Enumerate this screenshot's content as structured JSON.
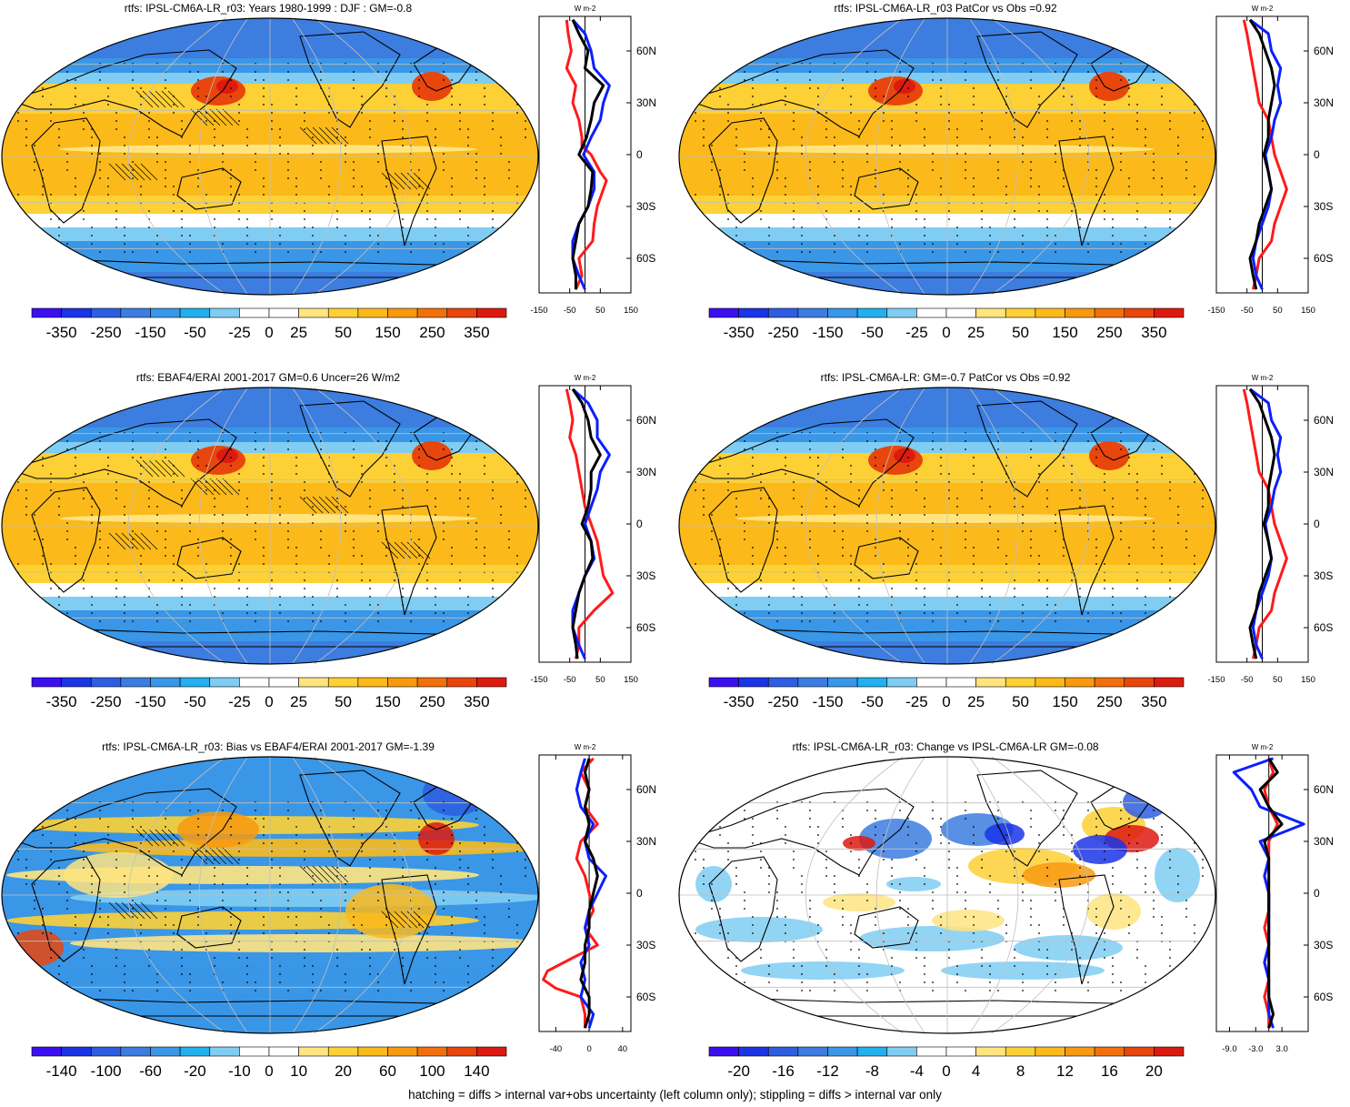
{
  "footer": "hatching = diffs > internal var+obs uncertainty (left column only); stippling = diffs > internal var only",
  "colors": {
    "red": "#ff1a1a",
    "blue": "#0a1fff",
    "black": "#000000",
    "land_line": "#000000",
    "grid": "#bfbfbf"
  },
  "panels": [
    {
      "title": "rtfs: IPSL-CM6A-LR_r03: Years 1980-1999 : DJF : GM=-0.8",
      "style": "full",
      "hatch": true,
      "stipple": true,
      "colorbar_labels": [
        "-350",
        "-250",
        "-150",
        "-50",
        "-25",
        "0",
        "25",
        "50",
        "150",
        "250",
        "350"
      ],
      "profile": {
        "unit": "W m-2",
        "xticks": [
          "-150",
          "-50",
          "50",
          "150"
        ],
        "xrange": [
          -150,
          150
        ],
        "lat_labels": [
          "60N",
          "30N",
          "0",
          "30S",
          "60S"
        ],
        "lines": [
          {
            "name": "red",
            "lat": [
              78,
              70,
              60,
              50,
              40,
              30,
              20,
              10,
              5,
              0,
              -10,
              -15,
              -20,
              -30,
              -40,
              -50,
              -60,
              -70,
              -78
            ],
            "val": [
              -60,
              -55,
              -45,
              -60,
              -30,
              -40,
              -20,
              -10,
              -10,
              20,
              50,
              70,
              60,
              40,
              30,
              25,
              -20,
              -10,
              -30
            ]
          },
          {
            "name": "blue",
            "lat": [
              78,
              70,
              60,
              50,
              40,
              30,
              20,
              10,
              0,
              -10,
              -20,
              -30,
              -40,
              -50,
              -60,
              -70,
              -78
            ],
            "val": [
              -40,
              0,
              20,
              30,
              80,
              60,
              50,
              20,
              -5,
              30,
              30,
              10,
              -20,
              -40,
              -40,
              -20,
              0
            ]
          },
          {
            "name": "black",
            "lat": [
              78,
              70,
              60,
              50,
              40,
              30,
              20,
              10,
              0,
              -10,
              -20,
              -30,
              -40,
              -50,
              -60,
              -70,
              -78
            ],
            "val": [
              -40,
              -20,
              10,
              0,
              60,
              30,
              20,
              5,
              -20,
              25,
              20,
              10,
              -20,
              -30,
              -40,
              -30,
              -30
            ]
          }
        ]
      }
    },
    {
      "title": "rtfs: IPSL-CM6A-LR_r03 PatCor vs Obs =0.92",
      "style": "full",
      "hatch": false,
      "stipple": true,
      "colorbar_labels": [
        "-350",
        "-250",
        "-150",
        "-50",
        "-25",
        "0",
        "25",
        "50",
        "150",
        "250",
        "350"
      ],
      "profile": {
        "unit": "W m-2",
        "xticks": [
          "-150",
          "-50",
          "50",
          "150"
        ],
        "xrange": [
          -150,
          150
        ],
        "lat_labels": [
          "60N",
          "30N",
          "0",
          "30S",
          "60S"
        ],
        "lines": [
          {
            "name": "red",
            "lat": [
              78,
              70,
              60,
              50,
              40,
              30,
              20,
              10,
              0,
              -10,
              -20,
              -30,
              -40,
              -50,
              -60,
              -70,
              -78
            ],
            "val": [
              -60,
              -50,
              -40,
              -30,
              -20,
              -10,
              20,
              30,
              40,
              60,
              80,
              60,
              40,
              30,
              -10,
              -20,
              -30
            ]
          },
          {
            "name": "blue",
            "lat": [
              78,
              70,
              60,
              50,
              40,
              30,
              20,
              10,
              0,
              -10,
              -20,
              -30,
              -40,
              -50,
              -60,
              -70,
              -78
            ],
            "val": [
              -40,
              20,
              30,
              60,
              50,
              60,
              40,
              30,
              10,
              20,
              30,
              20,
              0,
              -20,
              -30,
              -20,
              0
            ]
          },
          {
            "name": "black",
            "lat": [
              78,
              70,
              60,
              50,
              40,
              30,
              20,
              10,
              0,
              -10,
              -20,
              -30,
              -40,
              -50,
              -60,
              -70,
              -78
            ],
            "val": [
              -40,
              -10,
              10,
              30,
              40,
              30,
              20,
              20,
              5,
              20,
              30,
              10,
              -10,
              -20,
              -40,
              -30,
              -20
            ]
          }
        ]
      }
    },
    {
      "title": "rtfs: EBAF4/ERAI 2001-2017 GM=0.6 Uncer=26 W/m2",
      "style": "full",
      "hatch": true,
      "stipple": true,
      "colorbar_labels": [
        "-350",
        "-250",
        "-150",
        "-50",
        "-25",
        "0",
        "25",
        "50",
        "150",
        "250",
        "350"
      ],
      "profile": {
        "unit": "W m-2",
        "xticks": [
          "-150",
          "-50",
          "50",
          "150"
        ],
        "xrange": [
          -150,
          150
        ],
        "lat_labels": [
          "60N",
          "30N",
          "0",
          "30S",
          "60S"
        ],
        "lines": [
          {
            "name": "red",
            "lat": [
              78,
              70,
              60,
              50,
              40,
              30,
              20,
              10,
              0,
              -10,
              -20,
              -30,
              -40,
              -50,
              -60,
              -70,
              -78
            ],
            "val": [
              -60,
              -50,
              -40,
              -50,
              -30,
              -20,
              -10,
              0,
              20,
              40,
              50,
              60,
              90,
              30,
              -20,
              -20,
              -30
            ]
          },
          {
            "name": "blue",
            "lat": [
              78,
              70,
              60,
              50,
              40,
              30,
              20,
              10,
              0,
              -10,
              -20,
              -30,
              -40,
              -50,
              -60,
              -70,
              -78
            ],
            "val": [
              -40,
              10,
              40,
              40,
              80,
              50,
              40,
              20,
              0,
              20,
              30,
              0,
              -20,
              -40,
              -40,
              -20,
              0
            ]
          },
          {
            "name": "black",
            "lat": [
              78,
              70,
              60,
              50,
              40,
              30,
              20,
              10,
              0,
              -10,
              -20,
              -30,
              -40,
              -50,
              -60,
              -70,
              -78
            ],
            "val": [
              -40,
              -10,
              10,
              20,
              50,
              20,
              20,
              10,
              -10,
              20,
              25,
              0,
              -20,
              -30,
              -40,
              -30,
              -25
            ]
          }
        ]
      }
    },
    {
      "title": "rtfs: IPSL-CM6A-LR: GM=-0.7 PatCor vs Obs =0.92",
      "style": "full",
      "hatch": false,
      "stipple": true,
      "colorbar_labels": [
        "-350",
        "-250",
        "-150",
        "-50",
        "-25",
        "0",
        "25",
        "50",
        "150",
        "250",
        "350"
      ],
      "profile": {
        "unit": "W m-2",
        "xticks": [
          "-150",
          "-50",
          "50",
          "150"
        ],
        "xrange": [
          -150,
          150
        ],
        "lat_labels": [
          "60N",
          "30N",
          "0",
          "30S",
          "60S"
        ],
        "lines": [
          {
            "name": "red",
            "lat": [
              78,
              70,
              60,
              50,
              40,
              30,
              20,
              10,
              0,
              -10,
              -20,
              -30,
              -40,
              -50,
              -60,
              -70,
              -78
            ],
            "val": [
              -60,
              -50,
              -40,
              -30,
              -20,
              -10,
              20,
              30,
              40,
              60,
              80,
              60,
              40,
              30,
              -10,
              -20,
              -30
            ]
          },
          {
            "name": "blue",
            "lat": [
              78,
              70,
              60,
              50,
              40,
              30,
              20,
              10,
              0,
              -10,
              -20,
              -30,
              -40,
              -50,
              -60,
              -70,
              -78
            ],
            "val": [
              -40,
              20,
              30,
              60,
              50,
              60,
              40,
              30,
              10,
              20,
              30,
              20,
              0,
              -20,
              -30,
              -20,
              0
            ]
          },
          {
            "name": "black",
            "lat": [
              78,
              70,
              60,
              50,
              40,
              30,
              20,
              10,
              0,
              -10,
              -20,
              -30,
              -40,
              -50,
              -60,
              -70,
              -78
            ],
            "val": [
              -40,
              -10,
              10,
              30,
              40,
              30,
              20,
              20,
              5,
              20,
              30,
              10,
              -10,
              -20,
              -40,
              -30,
              -20
            ]
          }
        ]
      }
    },
    {
      "title": "rtfs: IPSL-CM6A-LR_r03: Bias vs EBAF4/ERAI 2001-2017 GM=-1.39",
      "style": "bias",
      "hatch": true,
      "stipple": true,
      "colorbar_labels": [
        "-140",
        "-100",
        "-60",
        "-20",
        "-10",
        "0",
        "10",
        "20",
        "60",
        "100",
        "140"
      ],
      "profile": {
        "unit": "W m-2",
        "xticks": [
          "-40",
          "0",
          "40"
        ],
        "xrange": [
          -60,
          50
        ],
        "lat_labels": [
          "60N",
          "30N",
          "0",
          "30S",
          "60S"
        ],
        "lines": [
          {
            "name": "red",
            "lat": [
              78,
              70,
              60,
              50,
              40,
              30,
              20,
              10,
              0,
              -10,
              -20,
              -30,
              -40,
              -45,
              -50,
              -55,
              -60,
              -70,
              -78
            ],
            "val": [
              5,
              -10,
              0,
              -5,
              10,
              -10,
              -15,
              -5,
              0,
              5,
              -5,
              10,
              -30,
              -50,
              -55,
              -40,
              -10,
              -5,
              -5
            ]
          },
          {
            "name": "blue",
            "lat": [
              78,
              70,
              60,
              50,
              40,
              30,
              20,
              10,
              0,
              -10,
              -20,
              -30,
              -40,
              -50,
              -60,
              -70,
              -78
            ],
            "val": [
              -5,
              -10,
              -15,
              -10,
              5,
              -5,
              0,
              20,
              10,
              0,
              -5,
              0,
              -10,
              -5,
              -10,
              5,
              0
            ]
          },
          {
            "name": "black",
            "lat": [
              78,
              70,
              60,
              50,
              40,
              30,
              20,
              10,
              0,
              -10,
              -20,
              -30,
              -40,
              -50,
              -60,
              -70,
              -78
            ],
            "val": [
              0,
              -5,
              0,
              -5,
              0,
              -5,
              5,
              10,
              5,
              0,
              0,
              -5,
              -5,
              -10,
              0,
              0,
              -5
            ]
          }
        ]
      }
    },
    {
      "title": "rtfs: IPSL-CM6A-LR_r03: Change vs IPSL-CM6A-LR GM=-0.08",
      "style": "change",
      "hatch": false,
      "stipple": true,
      "colorbar_labels": [
        "-20",
        "-16",
        "-12",
        "-8",
        "-4",
        "0",
        "4",
        "8",
        "12",
        "16",
        "20"
      ],
      "profile": {
        "unit": "W m-2",
        "xticks": [
          "-9.0",
          "-3.0",
          "3.0"
        ],
        "xrange": [
          -12,
          9
        ],
        "lat_labels": [
          "60N",
          "30N",
          "0",
          "30S",
          "60S"
        ],
        "lines": [
          {
            "name": "red",
            "lat": [
              78,
              70,
              60,
              50,
              40,
              30,
              20,
              10,
              0,
              -10,
              -20,
              -30,
              -40,
              -50,
              -60,
              -70,
              -78
            ],
            "val": [
              0,
              1,
              -1,
              0,
              2,
              0,
              0,
              -1,
              0,
              0,
              -1,
              0,
              -1,
              0,
              -1,
              0,
              0
            ]
          },
          {
            "name": "blue",
            "lat": [
              78,
              70,
              60,
              50,
              40,
              30,
              20,
              10,
              0,
              -10,
              -20,
              -30,
              -40,
              -50,
              -60,
              -70,
              -78
            ],
            "val": [
              1,
              -8,
              -4,
              -2,
              8,
              -2,
              0,
              -1,
              0,
              0,
              0,
              0,
              -1,
              0,
              0,
              0,
              1
            ]
          },
          {
            "name": "black",
            "lat": [
              78,
              70,
              60,
              50,
              40,
              30,
              20,
              10,
              0,
              -10,
              -20,
              -30,
              -40,
              -50,
              -60,
              -70,
              -78
            ],
            "val": [
              0,
              2,
              -2,
              0,
              3,
              -1,
              0,
              0,
              0,
              0,
              0,
              0,
              0,
              0,
              0,
              1,
              0
            ]
          }
        ]
      }
    }
  ]
}
